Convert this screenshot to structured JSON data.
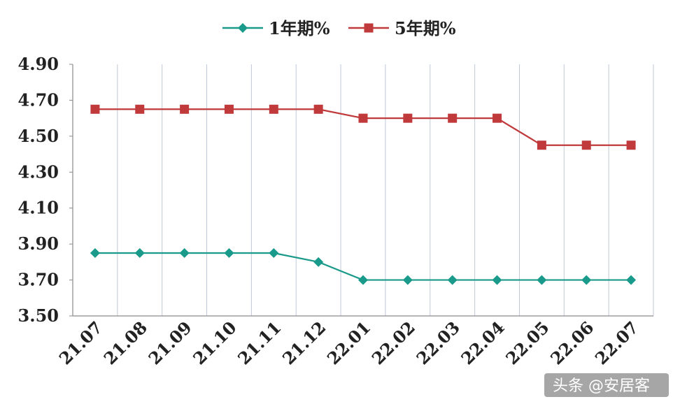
{
  "chart_data": {
    "type": "line",
    "categories": [
      "21.07",
      "21.08",
      "21.09",
      "21.10",
      "21.11",
      "21.12",
      "22.01",
      "22.02",
      "22.03",
      "22.04",
      "22.05",
      "22.06",
      "22.07"
    ],
    "series": [
      {
        "name": "1年期%",
        "values": [
          3.85,
          3.85,
          3.85,
          3.85,
          3.85,
          3.8,
          3.7,
          3.7,
          3.7,
          3.7,
          3.7,
          3.7,
          3.7
        ],
        "color": "#1a9a8a",
        "marker": "diamond"
      },
      {
        "name": "5年期%",
        "values": [
          4.65,
          4.65,
          4.65,
          4.65,
          4.65,
          4.65,
          4.6,
          4.6,
          4.6,
          4.6,
          4.45,
          4.45,
          4.45
        ],
        "color": "#c0393b",
        "marker": "square"
      }
    ],
    "yticks": [
      "4.90",
      "4.70",
      "4.50",
      "4.30",
      "4.10",
      "3.90",
      "3.70",
      "3.50"
    ],
    "ylim": [
      3.5,
      4.9
    ],
    "grid": "vertical",
    "legend_position": "top"
  },
  "watermark": "头条 @安居客"
}
